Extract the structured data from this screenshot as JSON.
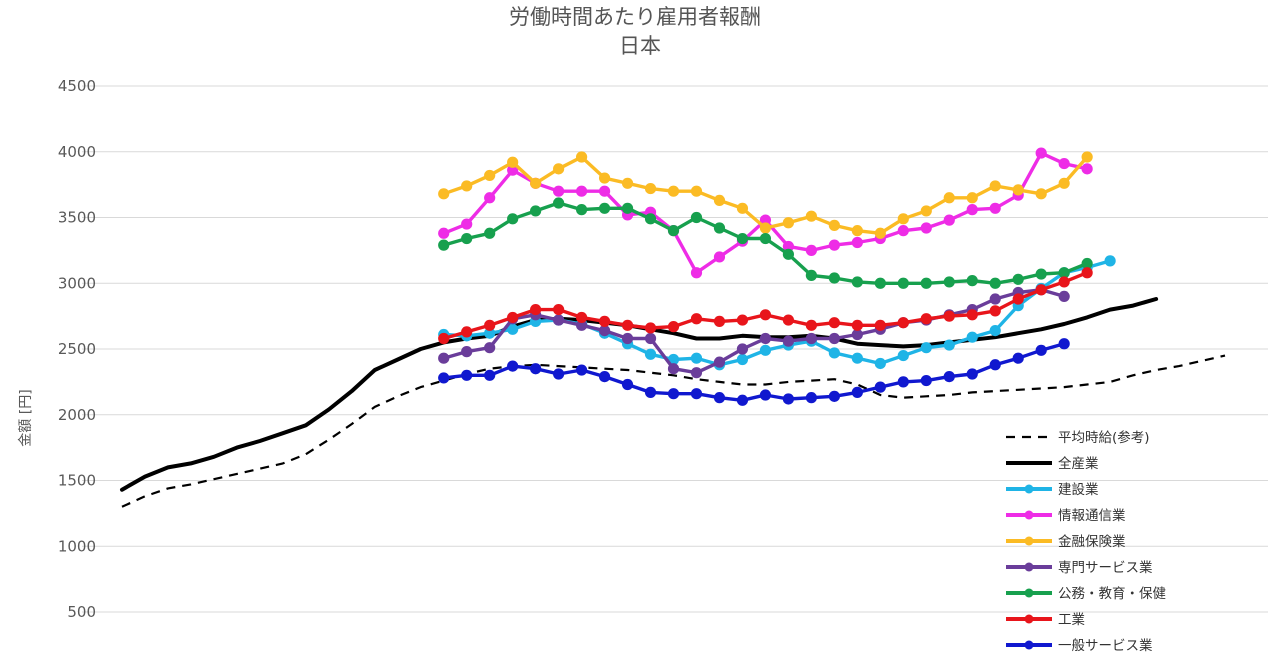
{
  "chart_data": {
    "type": "line",
    "title": "労働時間あたり雇用者報酬",
    "subtitle": "日本",
    "xlabel": "",
    "ylabel": "金額 [円]",
    "ylim": [
      500,
      4500
    ],
    "yticks": [
      500,
      1000,
      1500,
      2000,
      2500,
      3000,
      3500,
      4000,
      4500
    ],
    "grid": true,
    "legend_position": "bottom-right",
    "x": [
      0,
      1,
      2,
      3,
      4,
      5,
      6,
      7,
      8,
      9,
      10,
      11,
      12,
      13,
      14,
      15,
      16,
      17,
      18,
      19,
      20,
      21,
      22,
      23,
      24,
      25,
      26,
      27,
      28,
      29,
      30,
      31,
      32,
      33,
      34,
      35,
      36,
      37,
      38,
      39,
      40,
      41,
      42,
      43,
      44,
      45,
      46,
      47,
      48,
      49
    ],
    "series": [
      {
        "name": "平均時給(参考)",
        "color": "#000000",
        "style": "dashed",
        "markers": false,
        "values": [
          1300,
          1380,
          1440,
          1470,
          1510,
          1550,
          1590,
          1630,
          1700,
          1810,
          1930,
          2060,
          2140,
          2210,
          2260,
          2310,
          2350,
          2370,
          2380,
          2370,
          2360,
          2350,
          2340,
          2320,
          2300,
          2270,
          2250,
          2230,
          2230,
          2250,
          2260,
          2270,
          2230,
          2150,
          2130,
          2140,
          2150,
          2170,
          2180,
          2190,
          2200,
          2210,
          2230,
          2250,
          2300,
          2340,
          2370,
          2410,
          2450,
          null
        ]
      },
      {
        "name": "全産業",
        "color": "#000000",
        "style": "solid",
        "markers": false,
        "values": [
          1430,
          1530,
          1600,
          1630,
          1680,
          1750,
          1800,
          1860,
          1920,
          2040,
          2180,
          2340,
          2420,
          2500,
          2550,
          2580,
          2600,
          2670,
          2720,
          2730,
          2720,
          2700,
          2680,
          2650,
          2620,
          2580,
          2580,
          2600,
          2590,
          2590,
          2600,
          2580,
          2540,
          2530,
          2520,
          2530,
          2550,
          2570,
          2590,
          2620,
          2650,
          2690,
          2740,
          2800,
          2830,
          2880,
          null,
          null,
          null,
          null
        ]
      },
      {
        "name": "建設業",
        "color": "#1fb4e6",
        "style": "solid",
        "markers": true,
        "values": [
          null,
          null,
          null,
          null,
          null,
          null,
          null,
          null,
          null,
          null,
          null,
          null,
          null,
          null,
          2610,
          2600,
          2620,
          2650,
          2710,
          2720,
          2690,
          2620,
          2540,
          2460,
          2420,
          2430,
          2380,
          2420,
          2490,
          2530,
          2560,
          2470,
          2430,
          2390,
          2450,
          2510,
          2530,
          2590,
          2640,
          2830,
          2960,
          3080,
          3120,
          3170,
          null,
          null,
          null,
          null,
          null,
          null
        ]
      },
      {
        "name": "情報通信業",
        "color": "#ee2ce6",
        "style": "solid",
        "markers": true,
        "values": [
          null,
          null,
          null,
          null,
          null,
          null,
          null,
          null,
          null,
          null,
          null,
          null,
          null,
          null,
          3380,
          3450,
          3650,
          3860,
          3760,
          3700,
          3700,
          3700,
          3520,
          3540,
          3400,
          3080,
          3200,
          3320,
          3480,
          3280,
          3250,
          3290,
          3310,
          3340,
          3400,
          3420,
          3480,
          3560,
          3570,
          3670,
          3990,
          3910,
          3870,
          null,
          null,
          null,
          null,
          null,
          null,
          null
        ]
      },
      {
        "name": "金融保険業",
        "color": "#fbbb24",
        "style": "solid",
        "markers": true,
        "values": [
          null,
          null,
          null,
          null,
          null,
          null,
          null,
          null,
          null,
          null,
          null,
          null,
          null,
          null,
          3680,
          3740,
          3820,
          3920,
          3760,
          3870,
          3960,
          3800,
          3760,
          3720,
          3700,
          3700,
          3630,
          3570,
          3420,
          3460,
          3510,
          3440,
          3400,
          3380,
          3490,
          3550,
          3650,
          3650,
          3740,
          3710,
          3680,
          3760,
          3960,
          null,
          null,
          null,
          null,
          null,
          null,
          null
        ]
      },
      {
        "name": "専門サービス業",
        "color": "#6a3d9a",
        "style": "solid",
        "markers": true,
        "values": [
          null,
          null,
          null,
          null,
          null,
          null,
          null,
          null,
          null,
          null,
          null,
          null,
          null,
          null,
          2430,
          2480,
          2510,
          2730,
          2760,
          2720,
          2680,
          2640,
          2580,
          2580,
          2350,
          2320,
          2400,
          2500,
          2580,
          2560,
          2580,
          2580,
          2610,
          2650,
          2700,
          2720,
          2760,
          2800,
          2880,
          2930,
          2950,
          2900,
          null,
          null,
          null,
          null,
          null,
          null,
          null,
          null
        ]
      },
      {
        "name": "公務・教育・保健",
        "color": "#17a04e",
        "style": "solid",
        "markers": true,
        "values": [
          null,
          null,
          null,
          null,
          null,
          null,
          null,
          null,
          null,
          null,
          null,
          null,
          null,
          null,
          3290,
          3340,
          3380,
          3490,
          3550,
          3610,
          3560,
          3570,
          3570,
          3490,
          3400,
          3500,
          3420,
          3340,
          3340,
          3220,
          3060,
          3040,
          3010,
          3000,
          3000,
          3000,
          3010,
          3020,
          3000,
          3030,
          3070,
          3080,
          3150,
          null,
          null,
          null,
          null,
          null,
          null,
          null
        ]
      },
      {
        "name": "工業",
        "color": "#e8151b",
        "style": "solid",
        "markers": true,
        "values": [
          null,
          null,
          null,
          null,
          null,
          null,
          null,
          null,
          null,
          null,
          null,
          null,
          null,
          null,
          2580,
          2630,
          2680,
          2740,
          2800,
          2800,
          2740,
          2710,
          2680,
          2660,
          2670,
          2730,
          2710,
          2720,
          2760,
          2720,
          2680,
          2700,
          2680,
          2680,
          2700,
          2730,
          2750,
          2760,
          2790,
          2880,
          2950,
          3010,
          3080,
          null,
          null,
          null,
          null,
          null,
          null,
          null
        ]
      },
      {
        "name": "一般サービス業",
        "color": "#1018cf",
        "style": "solid",
        "markers": true,
        "values": [
          null,
          null,
          null,
          null,
          null,
          null,
          null,
          null,
          null,
          null,
          null,
          null,
          null,
          null,
          2280,
          2300,
          2300,
          2370,
          2350,
          2310,
          2340,
          2290,
          2230,
          2170,
          2160,
          2160,
          2130,
          2110,
          2150,
          2120,
          2130,
          2140,
          2170,
          2210,
          2250,
          2260,
          2290,
          2310,
          2380,
          2430,
          2490,
          2540,
          null,
          null,
          null,
          null,
          null,
          null,
          null,
          null
        ]
      }
    ]
  }
}
